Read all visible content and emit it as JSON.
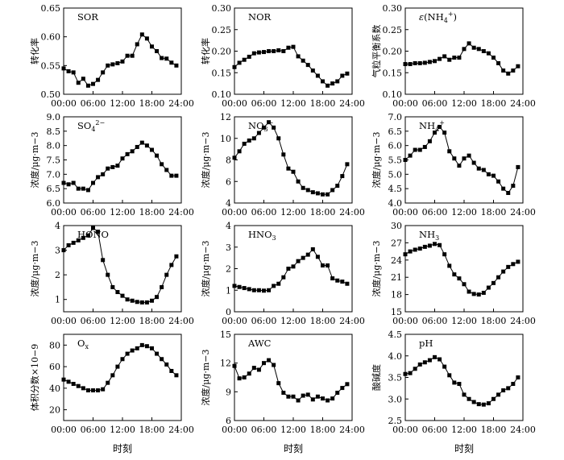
{
  "x_axis_label": "时刻",
  "chart_data": [
    {
      "type": "line",
      "label": "SOR",
      "ylabel": "转化率",
      "ylim": [
        0.5,
        0.65
      ],
      "yticks": [
        "0.50",
        "0.55",
        "0.60",
        "0.65"
      ],
      "xticks": [
        "00:00",
        "06:00",
        "12:00",
        "18:00",
        "24:00"
      ],
      "x": [
        0,
        1,
        2,
        3,
        4,
        5,
        6,
        7,
        8,
        9,
        10,
        11,
        12,
        13,
        14,
        15,
        16,
        17,
        18,
        19,
        20,
        21,
        22,
        23
      ],
      "values": [
        0.545,
        0.54,
        0.538,
        0.52,
        0.527,
        0.515,
        0.518,
        0.525,
        0.538,
        0.55,
        0.552,
        0.554,
        0.557,
        0.567,
        0.567,
        0.587,
        0.604,
        0.597,
        0.583,
        0.575,
        0.563,
        0.562,
        0.555,
        0.55
      ]
    },
    {
      "type": "line",
      "label": "NOR",
      "ylabel": "转化率",
      "ylim": [
        0.1,
        0.3
      ],
      "yticks": [
        "0.10",
        "0.15",
        "0.20",
        "0.25",
        "0.30"
      ],
      "xticks": [
        "00:00",
        "06:00",
        "12:00",
        "18:00",
        "24:00"
      ],
      "x": [
        0,
        1,
        2,
        3,
        4,
        5,
        6,
        7,
        8,
        9,
        10,
        11,
        12,
        13,
        14,
        15,
        16,
        17,
        18,
        19,
        20,
        21,
        22,
        23
      ],
      "values": [
        0.163,
        0.173,
        0.18,
        0.187,
        0.195,
        0.197,
        0.198,
        0.2,
        0.2,
        0.202,
        0.2,
        0.208,
        0.21,
        0.188,
        0.178,
        0.168,
        0.155,
        0.143,
        0.13,
        0.12,
        0.125,
        0.13,
        0.143,
        0.148
      ]
    },
    {
      "type": "line",
      "label": "ε(NH4+)",
      "ylabel": "气粒平衡系数",
      "ylim": [
        0.1,
        0.3
      ],
      "yticks": [
        "0.10",
        "0.15",
        "0.20",
        "0.25",
        "0.30"
      ],
      "xticks": [
        "00:00",
        "06:00",
        "12:00",
        "18:00",
        "24:00"
      ],
      "x": [
        0,
        1,
        2,
        3,
        4,
        5,
        6,
        7,
        8,
        9,
        10,
        11,
        12,
        13,
        14,
        15,
        16,
        17,
        18,
        19,
        20,
        21,
        22,
        23
      ],
      "values": [
        0.17,
        0.17,
        0.172,
        0.172,
        0.173,
        0.175,
        0.177,
        0.182,
        0.188,
        0.18,
        0.185,
        0.185,
        0.205,
        0.218,
        0.208,
        0.205,
        0.2,
        0.195,
        0.185,
        0.172,
        0.155,
        0.148,
        0.155,
        0.165
      ]
    },
    {
      "type": "line",
      "label": "SO42−",
      "ylabel": "浓度/μg·m−3",
      "ylim": [
        6.0,
        9.0
      ],
      "yticks": [
        "6.0",
        "6.5",
        "7.0",
        "7.5",
        "8.0",
        "8.5",
        "9.0"
      ],
      "xticks": [
        "00:00",
        "06:00",
        "12:00",
        "18:00",
        "24:00"
      ],
      "x": [
        0,
        1,
        2,
        3,
        4,
        5,
        6,
        7,
        8,
        9,
        10,
        11,
        12,
        13,
        14,
        15,
        16,
        17,
        18,
        19,
        20,
        21,
        22,
        23
      ],
      "values": [
        6.7,
        6.65,
        6.7,
        6.5,
        6.5,
        6.45,
        6.7,
        6.9,
        7.0,
        7.2,
        7.25,
        7.3,
        7.55,
        7.7,
        7.8,
        7.95,
        8.1,
        8.0,
        7.85,
        7.65,
        7.35,
        7.15,
        6.95,
        6.95
      ]
    },
    {
      "type": "line",
      "label": "NO3−",
      "ylabel": "浓度/μg·m−3",
      "ylim": [
        4,
        12
      ],
      "yticks": [
        "4",
        "6",
        "8",
        "10",
        "12"
      ],
      "xticks": [
        "00:00",
        "06:00",
        "12:00",
        "18:00",
        "24:00"
      ],
      "x": [
        0,
        1,
        2,
        3,
        4,
        5,
        6,
        7,
        8,
        9,
        10,
        11,
        12,
        13,
        14,
        15,
        16,
        17,
        18,
        19,
        20,
        21,
        22,
        23
      ],
      "values": [
        8.2,
        8.8,
        9.5,
        9.8,
        10.0,
        10.5,
        11.0,
        11.5,
        11.0,
        10.0,
        8.5,
        7.2,
        6.9,
        6.0,
        5.4,
        5.2,
        5.0,
        4.9,
        4.8,
        4.8,
        5.2,
        5.6,
        6.5,
        7.6
      ]
    },
    {
      "type": "line",
      "label": "NH4+",
      "ylabel": "浓度/μg·m−3",
      "ylim": [
        4.0,
        7.0
      ],
      "yticks": [
        "4.0",
        "4.5",
        "5.0",
        "5.5",
        "6.0",
        "6.5",
        "7.0"
      ],
      "xticks": [
        "00:00",
        "06:00",
        "12:00",
        "18:00",
        "24:00"
      ],
      "x": [
        0,
        1,
        2,
        3,
        4,
        5,
        6,
        7,
        8,
        9,
        10,
        11,
        12,
        13,
        14,
        15,
        16,
        17,
        18,
        19,
        20,
        21,
        22,
        23
      ],
      "values": [
        5.5,
        5.65,
        5.85,
        5.85,
        5.95,
        6.15,
        6.45,
        6.65,
        6.45,
        5.8,
        5.55,
        5.3,
        5.55,
        5.65,
        5.4,
        5.2,
        5.15,
        5.0,
        4.95,
        4.75,
        4.5,
        4.35,
        4.6,
        5.25
      ]
    },
    {
      "type": "line",
      "label": "HONO",
      "ylabel": "浓度/μg·m−3",
      "ylim": [
        0.5,
        4
      ],
      "yticks": [
        "1",
        "2",
        "3",
        "4"
      ],
      "xticks": [
        "00:00",
        "06:00",
        "12:00",
        "18:00",
        "24:00"
      ],
      "x": [
        0,
        1,
        2,
        3,
        4,
        5,
        6,
        7,
        8,
        9,
        10,
        11,
        12,
        13,
        14,
        15,
        16,
        17,
        18,
        19,
        20,
        21,
        22,
        23
      ],
      "values": [
        3.0,
        3.2,
        3.3,
        3.4,
        3.5,
        3.6,
        3.9,
        3.75,
        2.6,
        2.0,
        1.5,
        1.3,
        1.15,
        1.0,
        0.95,
        0.9,
        0.88,
        0.88,
        0.95,
        1.1,
        1.5,
        2.0,
        2.4,
        2.75
      ]
    },
    {
      "type": "line",
      "label": "HNO3",
      "ylabel": "浓度/μg·m−3",
      "ylim": [
        0,
        4
      ],
      "yticks": [
        "0",
        "1",
        "2",
        "3",
        "4"
      ],
      "xticks": [
        "00:00",
        "06:00",
        "12:00",
        "18:00",
        "24:00"
      ],
      "x": [
        0,
        1,
        2,
        3,
        4,
        5,
        6,
        7,
        8,
        9,
        10,
        11,
        12,
        13,
        14,
        15,
        16,
        17,
        18,
        19,
        20,
        21,
        22,
        23
      ],
      "values": [
        1.2,
        1.15,
        1.1,
        1.05,
        1.0,
        1.0,
        0.98,
        1.0,
        1.2,
        1.3,
        1.6,
        2.0,
        2.1,
        2.35,
        2.5,
        2.65,
        2.9,
        2.55,
        2.15,
        2.15,
        1.55,
        1.45,
        1.4,
        1.3
      ]
    },
    {
      "type": "line",
      "label": "NH3",
      "ylabel": "浓度/μg·m−3",
      "ylim": [
        15,
        30
      ],
      "yticks": [
        "15",
        "18",
        "21",
        "24",
        "27",
        "30"
      ],
      "xticks": [
        "00:00",
        "06:00",
        "12:00",
        "18:00",
        "24:00"
      ],
      "x": [
        0,
        1,
        2,
        3,
        4,
        5,
        6,
        7,
        8,
        9,
        10,
        11,
        12,
        13,
        14,
        15,
        16,
        17,
        18,
        19,
        20,
        21,
        22,
        23
      ],
      "values": [
        25.0,
        25.5,
        25.8,
        26.0,
        26.3,
        26.5,
        26.8,
        26.6,
        25.0,
        23.0,
        21.5,
        20.8,
        19.8,
        18.5,
        18.1,
        18.0,
        18.3,
        19.2,
        20.0,
        21.0,
        22.0,
        22.8,
        23.3,
        23.7
      ]
    },
    {
      "type": "line",
      "label": "Ox",
      "ylabel": "体积分数×10−9",
      "ylim": [
        10,
        90
      ],
      "yticks": [
        "20",
        "40",
        "60",
        "80"
      ],
      "xticks": [
        "00:00",
        "06:00",
        "12:00",
        "18:00",
        "24:00"
      ],
      "x": [
        0,
        1,
        2,
        3,
        4,
        5,
        6,
        7,
        8,
        9,
        10,
        11,
        12,
        13,
        14,
        15,
        16,
        17,
        18,
        19,
        20,
        21,
        22,
        23
      ],
      "values": [
        48,
        46,
        44,
        42,
        40,
        38,
        38,
        38,
        39,
        45,
        52,
        60,
        67,
        72,
        75,
        77,
        80,
        79,
        77,
        72,
        67,
        62,
        56,
        52
      ]
    },
    {
      "type": "line",
      "label": "AWC",
      "ylabel": "浓度/μg·m−3",
      "ylim": [
        6,
        15
      ],
      "yticks": [
        "6",
        "9",
        "12",
        "15"
      ],
      "xticks": [
        "00:00",
        "06:00",
        "12:00",
        "18:00",
        "24:00"
      ],
      "x": [
        0,
        1,
        2,
        3,
        4,
        5,
        6,
        7,
        8,
        9,
        10,
        11,
        12,
        13,
        14,
        15,
        16,
        17,
        18,
        19,
        20,
        21,
        22,
        23
      ],
      "values": [
        11.7,
        10.4,
        10.5,
        10.9,
        11.5,
        11.3,
        12.0,
        12.3,
        11.8,
        9.9,
        8.9,
        8.5,
        8.5,
        8.1,
        8.6,
        8.7,
        8.2,
        8.5,
        8.3,
        8.1,
        8.3,
        8.9,
        9.4,
        9.8
      ]
    },
    {
      "type": "line",
      "label": "pH",
      "ylabel": "酸碱度",
      "ylim": [
        2.5,
        4.5
      ],
      "yticks": [
        "2.5",
        "3.0",
        "3.5",
        "4.0",
        "4.5"
      ],
      "xticks": [
        "00:00",
        "06:00",
        "12:00",
        "18:00",
        "24:00"
      ],
      "x": [
        0,
        1,
        2,
        3,
        4,
        5,
        6,
        7,
        8,
        9,
        10,
        11,
        12,
        13,
        14,
        15,
        16,
        17,
        18,
        19,
        20,
        21,
        22,
        23
      ],
      "values": [
        3.58,
        3.6,
        3.7,
        3.8,
        3.85,
        3.9,
        3.97,
        3.92,
        3.75,
        3.55,
        3.38,
        3.35,
        3.1,
        3.0,
        2.93,
        2.88,
        2.87,
        2.9,
        3.0,
        3.1,
        3.2,
        3.25,
        3.35,
        3.5
      ]
    }
  ]
}
